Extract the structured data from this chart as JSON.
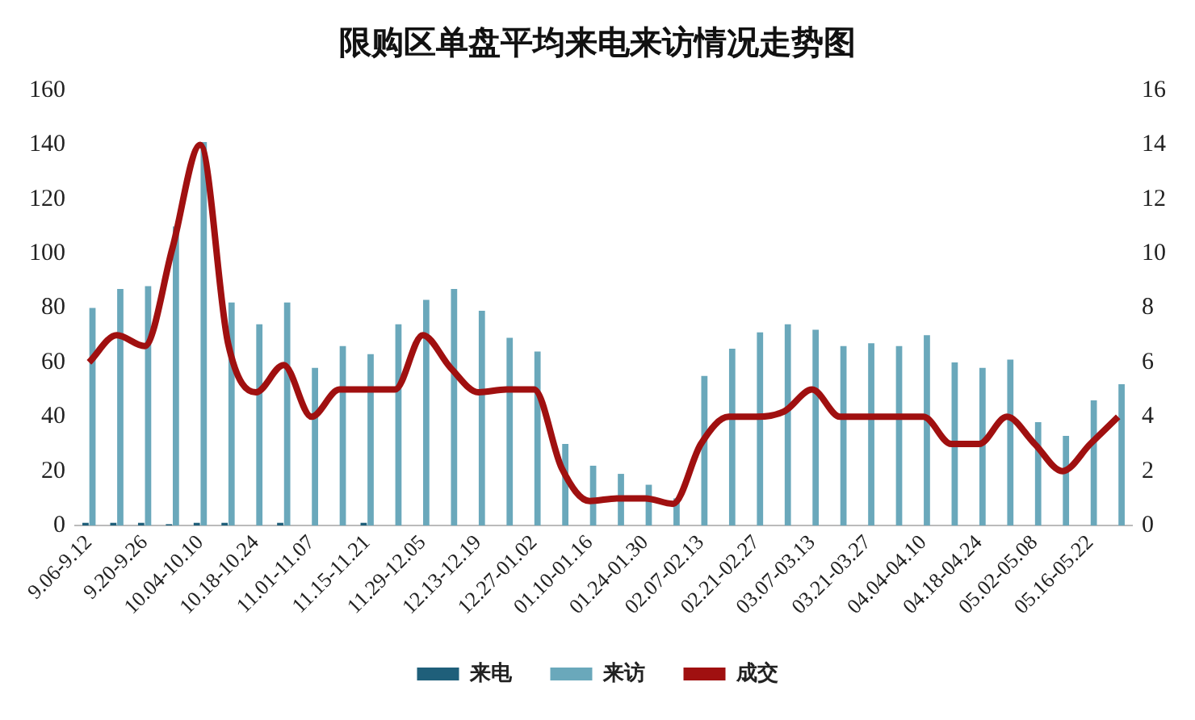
{
  "chart_data": {
    "type": "bar",
    "title": "限购区单盘平均来电来访情况走势图",
    "categories": [
      "9.06-9.12",
      null,
      "9.20-9.26",
      null,
      "10.04-10.10",
      null,
      "10.18-10.24",
      null,
      "11.01-11.07",
      null,
      "11.15-11.21",
      null,
      "11.29-12.05",
      null,
      "12.13-12.19",
      null,
      "12.27-01.02",
      null,
      "01.10-01.16",
      null,
      "01.24-01.30",
      null,
      "02.07-02.13",
      null,
      "02.21-02.27",
      null,
      "03.07-03.13",
      null,
      "03.21-03.27",
      null,
      "04.04-04.10",
      null,
      "04.18-04.24",
      null,
      "05.02-05.08",
      null,
      "05.16-05.22",
      null
    ],
    "series": [
      {
        "name": "来电",
        "color": "#1f5f7a",
        "values": [
          1,
          1,
          1,
          0.5,
          1,
          1,
          0,
          1,
          0,
          0,
          1,
          0,
          0,
          0,
          0,
          0,
          0,
          0,
          0,
          0,
          0,
          0,
          0,
          0,
          0,
          0,
          0,
          0,
          0,
          0,
          0,
          0,
          0,
          0,
          0,
          0,
          0,
          0
        ]
      },
      {
        "name": "来访",
        "color": "#6aa8bb",
        "values": [
          80,
          87,
          88,
          110,
          141,
          82,
          74,
          82,
          58,
          66,
          63,
          74,
          83,
          87,
          79,
          69,
          64,
          30,
          22,
          19,
          15,
          10,
          55,
          65,
          71,
          74,
          72,
          66,
          67,
          66,
          70,
          60,
          58,
          61,
          38,
          33,
          46,
          52
        ]
      },
      {
        "name": "成交",
        "type": "line",
        "axis": "y2",
        "color": "#a01010",
        "values": [
          6,
          7,
          6.6,
          10.2,
          14,
          6.7,
          4.9,
          5.9,
          4,
          5,
          5,
          5,
          7,
          5.8,
          4.9,
          5,
          5,
          2.1,
          0.9,
          1,
          1,
          0.8,
          3,
          4,
          4,
          4.2,
          5,
          4,
          4,
          4,
          4,
          3,
          3,
          4,
          3,
          2,
          3,
          4
        ]
      }
    ],
    "ylim": [
      0,
      160
    ],
    "yticks": [
      0,
      20,
      40,
      60,
      80,
      100,
      120,
      140,
      160
    ],
    "y2lim": [
      0,
      16
    ],
    "y2ticks": [
      0,
      2,
      4,
      6,
      8,
      10,
      12,
      14,
      16
    ],
    "grid": false,
    "legend": "bottom",
    "marker": "none"
  }
}
